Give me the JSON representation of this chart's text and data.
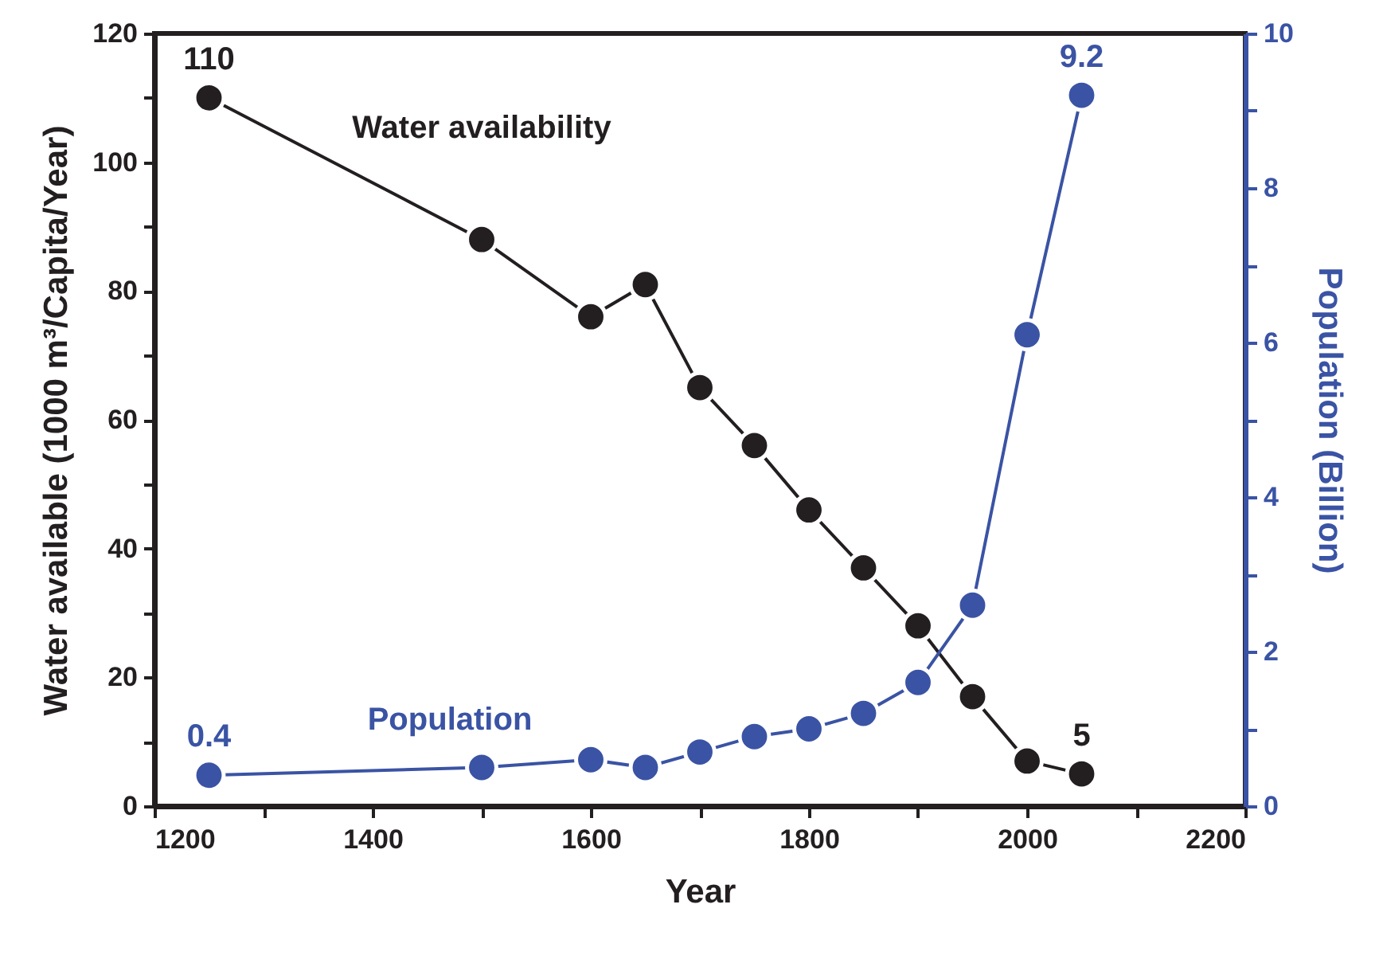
{
  "chart_data": {
    "type": "line",
    "xlabel": "Year",
    "ylabel": "Water available (1000 m³/Capita/Year)",
    "y2label": "Population (Billion)",
    "x": [
      1250,
      1500,
      1600,
      1650,
      1700,
      1750,
      1800,
      1850,
      1900,
      1950,
      2000,
      2050
    ],
    "series": [
      {
        "name": "Water availability",
        "color": "#231f20",
        "values": [
          110,
          88,
          76,
          81,
          65,
          56,
          46,
          37,
          28,
          17,
          7,
          5
        ],
        "value_labels": [
          "110",
          null,
          null,
          null,
          null,
          null,
          null,
          null,
          null,
          null,
          null,
          "5"
        ]
      },
      {
        "name": "Population",
        "color": "#3a53a4",
        "axis": "y2",
        "values": [
          0.4,
          0.5,
          0.6,
          0.5,
          0.7,
          0.9,
          1.0,
          1.2,
          1.6,
          2.6,
          6.1,
          9.2
        ],
        "value_labels": [
          "0.4",
          null,
          null,
          null,
          null,
          null,
          null,
          null,
          null,
          null,
          null,
          "9.2"
        ]
      }
    ],
    "xlim": [
      1200,
      2200
    ],
    "xticks": [
      1200,
      {
        "value": 1300,
        "label": null
      },
      1400,
      {
        "value": 1500,
        "label": null
      },
      1600,
      {
        "value": 1700,
        "label": null
      },
      1800,
      {
        "value": 1900,
        "label": null
      },
      2000,
      {
        "value": 2100,
        "label": null
      },
      2200
    ],
    "ylim": [
      0,
      120
    ],
    "yticks": [
      0,
      {
        "value": 10,
        "label": null
      },
      20,
      {
        "value": 30,
        "label": null
      },
      40,
      {
        "value": 50,
        "label": null
      },
      60,
      {
        "value": 70,
        "label": null
      },
      80,
      {
        "value": 90,
        "label": null
      },
      100,
      {
        "value": 110,
        "label": null
      },
      120
    ],
    "y2lim": [
      0,
      10
    ],
    "y2ticks": [
      0,
      {
        "value": 1,
        "label": null
      },
      2,
      {
        "value": 3,
        "label": null
      },
      4,
      {
        "value": 5,
        "label": null
      },
      6,
      {
        "value": 7,
        "label": null
      },
      8,
      {
        "value": 9,
        "label": null
      },
      10
    ],
    "marker": "circle",
    "line_style": "solid",
    "grid": false
  }
}
